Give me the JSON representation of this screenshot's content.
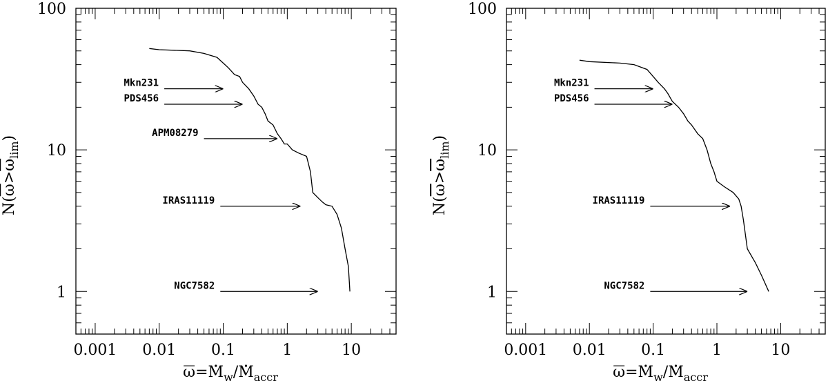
{
  "chart_data": [
    {
      "type": "line",
      "xscale": "log",
      "yscale": "log",
      "xlim": [
        0.0005,
        50
      ],
      "ylim": [
        0.5,
        100
      ],
      "xticks": [
        "0.001",
        "0.01",
        "0.1",
        "1",
        "10"
      ],
      "yticks": [
        "1",
        "10",
        "100"
      ],
      "xlabel_parts": {
        "omega": "ω",
        "eq": "=",
        "M": "M",
        "sub1": "w",
        "slash": "/",
        "sub2": "accr"
      },
      "ylabel_parts": {
        "N": "N(",
        "omega1": "ω",
        "gt": ">",
        "omega2": "ω",
        "sub": "lim",
        "close": ")"
      },
      "series": [
        {
          "x": [
            0.007,
            0.01,
            0.03,
            0.05,
            0.08,
            0.1,
            0.12,
            0.15,
            0.18,
            0.2,
            0.25,
            0.3,
            0.35,
            0.4,
            0.45,
            0.5,
            0.6,
            0.7,
            0.8,
            0.9,
            1.0,
            1.2,
            1.5,
            2.0,
            2.3,
            2.5,
            3.0,
            3.5,
            4.0,
            5.0,
            6.0,
            7.0,
            8.0,
            9.0,
            9.5
          ],
          "y": [
            52,
            51,
            50,
            48,
            45,
            41,
            38,
            34,
            33,
            30,
            27,
            24,
            21,
            20,
            18,
            16,
            15,
            13,
            12,
            11,
            11,
            10,
            9.5,
            9,
            7,
            5,
            4.6,
            4.3,
            4.1,
            4,
            3.5,
            2.8,
            2,
            1.5,
            1
          ]
        }
      ],
      "annotations": [
        {
          "label": "Mkn231",
          "y": 27,
          "x_start": 0.012,
          "x_end": 0.1
        },
        {
          "label": "PDS456",
          "y": 21,
          "x_start": 0.012,
          "x_end": 0.2
        },
        {
          "label": "APM08279",
          "y": 12,
          "x_start": 0.05,
          "x_end": 0.7
        },
        {
          "label": "IRAS11119",
          "y": 4,
          "x_start": 0.09,
          "x_end": 1.6
        },
        {
          "label": "NGC7582",
          "y": 1,
          "x_start": 0.09,
          "x_end": 3.0
        }
      ]
    },
    {
      "type": "line",
      "xscale": "log",
      "yscale": "log",
      "xlim": [
        0.0005,
        50
      ],
      "ylim": [
        0.5,
        100
      ],
      "xticks": [
        "0.001",
        "0.01",
        "0.1",
        "1",
        "10"
      ],
      "yticks": [
        "1",
        "10",
        "100"
      ],
      "xlabel_parts": {
        "omega": "ω",
        "eq": "=",
        "M": "M",
        "sub1": "w",
        "slash": "/",
        "sub2": "accr"
      },
      "ylabel_parts": {
        "N": "N(",
        "omega1": "ω",
        "gt": ">",
        "omega2": "ω",
        "sub": "lim",
        "close": ")"
      },
      "series": [
        {
          "x": [
            0.007,
            0.01,
            0.03,
            0.05,
            0.08,
            0.1,
            0.12,
            0.15,
            0.17,
            0.2,
            0.25,
            0.3,
            0.35,
            0.4,
            0.5,
            0.6,
            0.7,
            0.8,
            0.9,
            1.0,
            1.3,
            1.8,
            2.2,
            2.4,
            2.6,
            3.0,
            4.0,
            5.0,
            6.5
          ],
          "y": [
            43,
            42,
            41,
            40,
            37,
            33,
            30,
            27,
            25,
            22,
            20,
            18,
            16,
            15,
            13,
            12,
            10,
            8,
            7,
            6,
            5.5,
            5,
            4.5,
            4,
            3.2,
            2,
            1.6,
            1.3,
            1
          ]
        }
      ],
      "annotations": [
        {
          "label": "Mkn231",
          "y": 27,
          "x_start": 0.012,
          "x_end": 0.1
        },
        {
          "label": "PDS456",
          "y": 21,
          "x_start": 0.012,
          "x_end": 0.2
        },
        {
          "label": "IRAS11119",
          "y": 4,
          "x_start": 0.09,
          "x_end": 1.6
        },
        {
          "label": "NGC7582",
          "y": 1,
          "x_start": 0.09,
          "x_end": 3.0
        }
      ]
    }
  ]
}
